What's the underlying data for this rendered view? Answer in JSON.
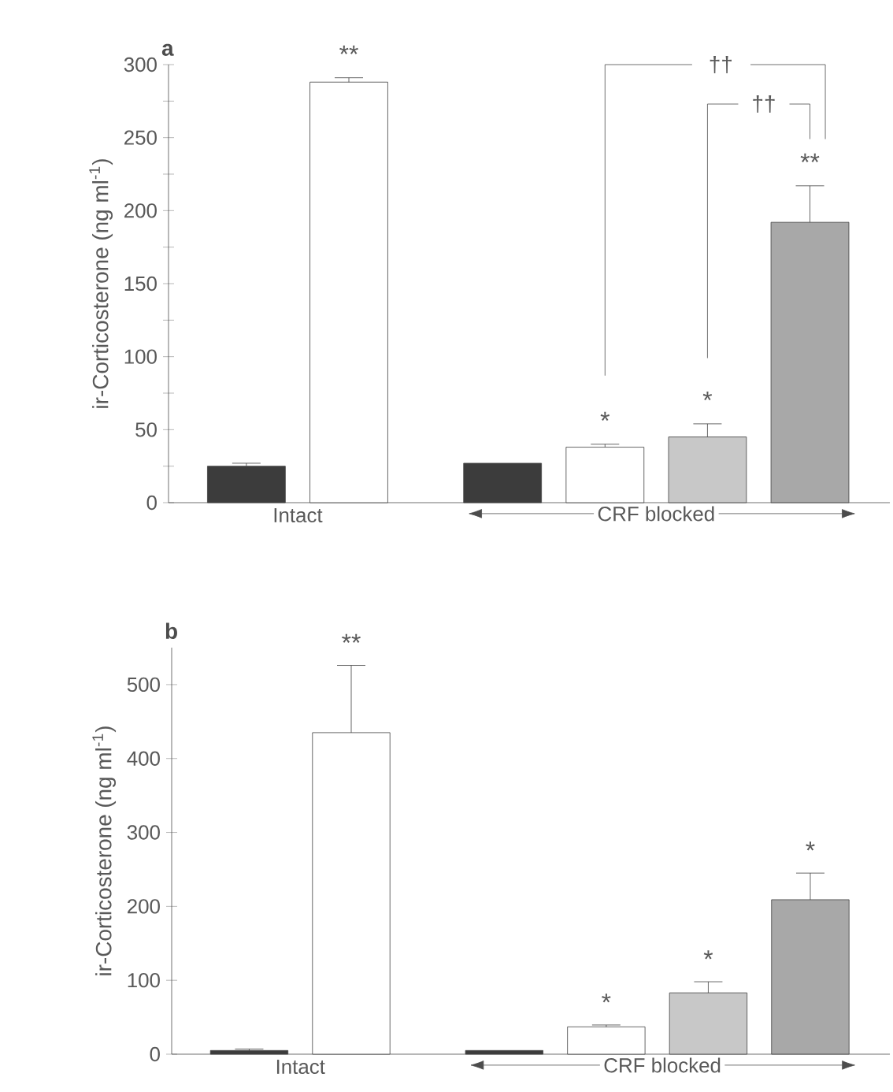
{
  "chart_data": [
    {
      "type": "bar",
      "title": "a",
      "ylabel": "ir-Corticosterone (ng ml$^{-1}$)",
      "categories": [
        null,
        null,
        null,
        null,
        null,
        null
      ],
      "values": [
        25,
        288,
        27,
        38,
        45,
        192
      ],
      "errors": [
        2,
        3,
        null,
        2,
        9,
        25
      ],
      "colors": [
        "#3c3c3c",
        "#ffffff",
        "#3c3c3c",
        "#ffffff",
        "#c8c8c8",
        "#a8a8a8"
      ],
      "ylim": [
        0,
        300
      ],
      "yticks": [
        0,
        {
          "value": 25,
          "label": null
        },
        50,
        {
          "value": 75,
          "label": null
        },
        100,
        {
          "value": 125,
          "label": null
        },
        150,
        {
          "value": 175,
          "label": null
        },
        200,
        {
          "value": 225,
          "label": null
        },
        250,
        {
          "value": 275,
          "label": null
        },
        300
      ],
      "annotations": [
        "Intact",
        "CRF blocked",
        "**",
        "*",
        "*",
        "**",
        "††",
        "††"
      ]
    },
    {
      "type": "bar",
      "title": "b",
      "ylabel": "ir-Corticosterone (ng ml$^{-1}$)",
      "categories": [
        null,
        null,
        null,
        null,
        null,
        null
      ],
      "values": [
        5,
        435,
        5,
        37,
        83,
        209
      ],
      "errors": [
        2,
        91,
        null,
        2.5,
        15,
        36
      ],
      "colors": [
        "#3c3c3c",
        "#ffffff",
        "#3c3c3c",
        "#ffffff",
        "#c8c8c8",
        "#a8a8a8"
      ],
      "ylim": [
        0,
        550
      ],
      "yticks": [
        0,
        100,
        200,
        300,
        400,
        500
      ],
      "annotations": [
        "Intact",
        "CRF blocked",
        "**",
        "*",
        "*",
        "*"
      ]
    }
  ]
}
